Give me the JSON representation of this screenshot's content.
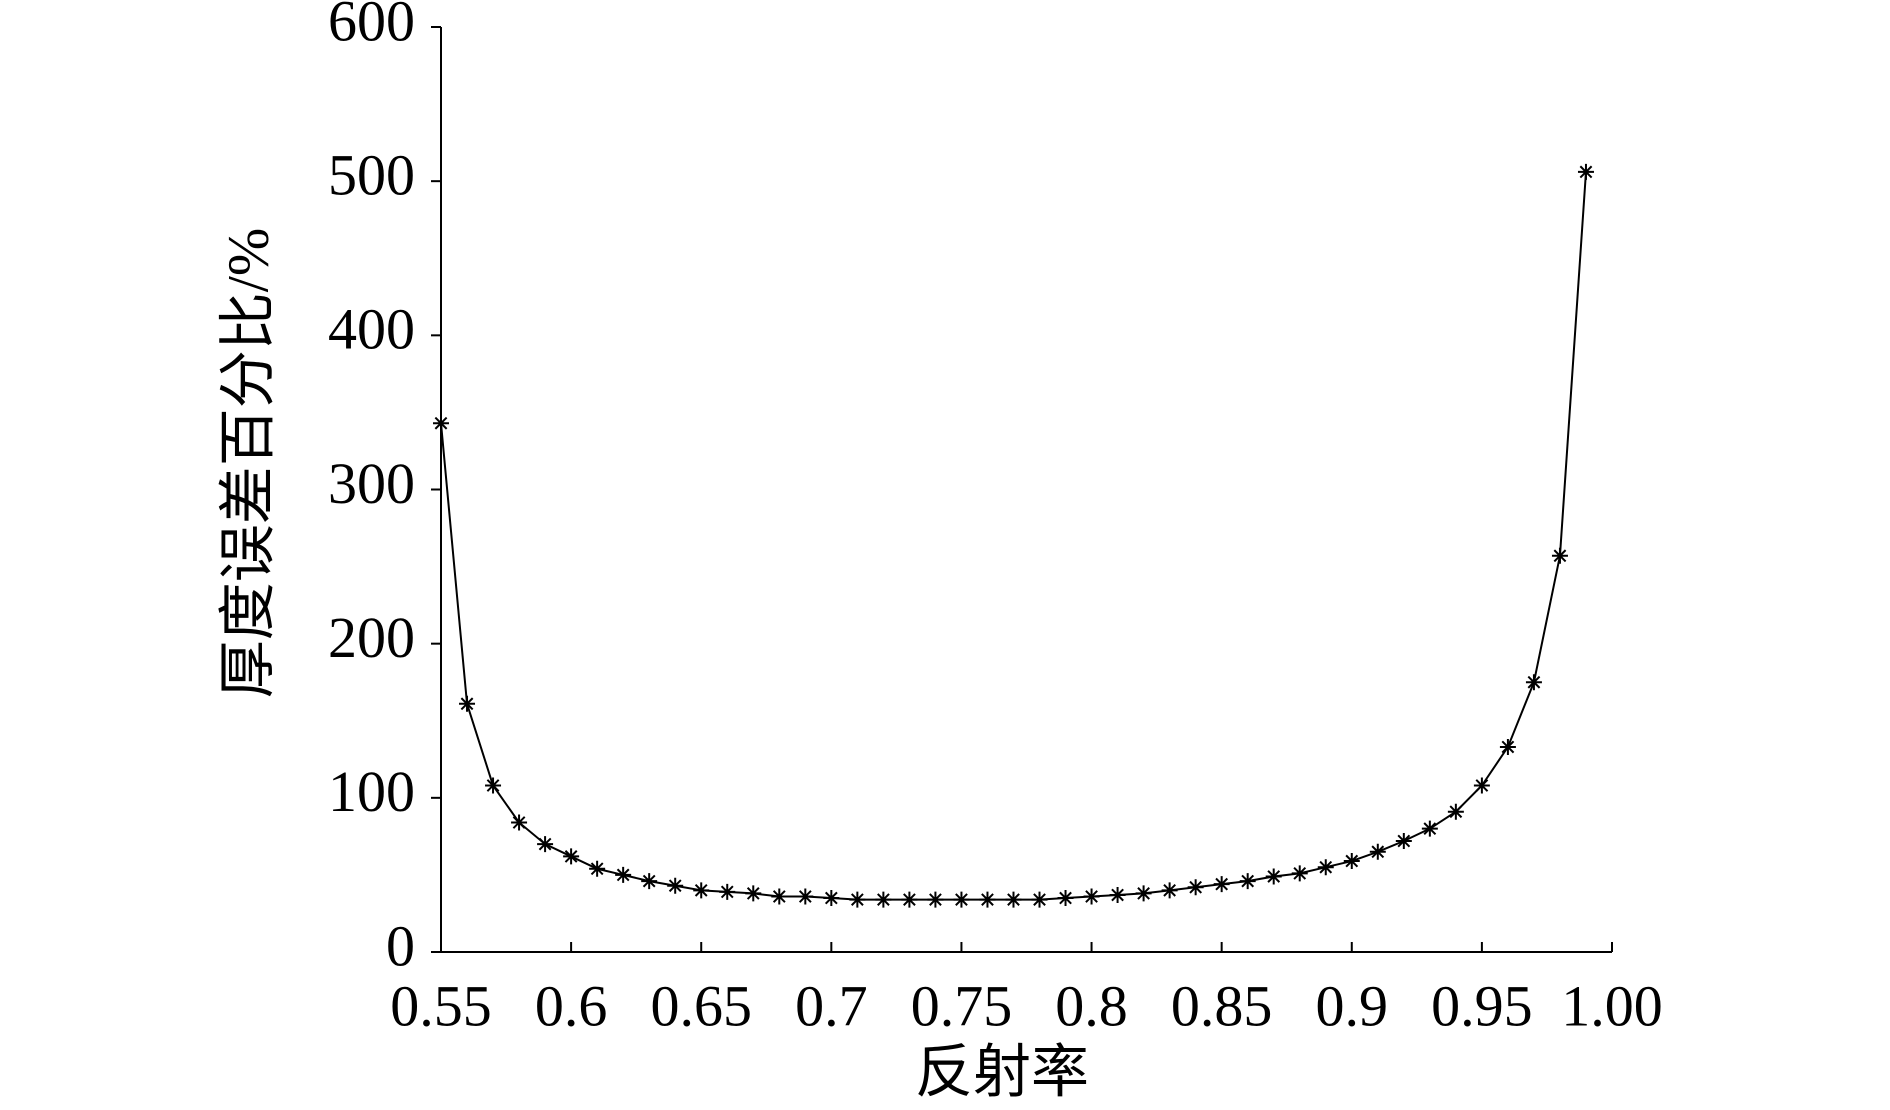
{
  "chart_data": {
    "type": "line",
    "xlabel": "反射率",
    "ylabel": "厚度误差百分比/%",
    "x": [
      0.55,
      0.56,
      0.57,
      0.58,
      0.59,
      0.6,
      0.61,
      0.62,
      0.63,
      0.64,
      0.65,
      0.66,
      0.67,
      0.68,
      0.69,
      0.7,
      0.71,
      0.72,
      0.73,
      0.74,
      0.75,
      0.76,
      0.77,
      0.78,
      0.79,
      0.8,
      0.81,
      0.82,
      0.83,
      0.84,
      0.85,
      0.86,
      0.87,
      0.88,
      0.89,
      0.9,
      0.91,
      0.92,
      0.93,
      0.94,
      0.95,
      0.96,
      0.97,
      0.98,
      0.99
    ],
    "series": [
      {
        "color": "#000000",
        "values": [
          343,
          161,
          108,
          84,
          70,
          62,
          54,
          50,
          46,
          43,
          40,
          39,
          38,
          36,
          36,
          35,
          34,
          34,
          34,
          34,
          34,
          34,
          34,
          34,
          35,
          36,
          37,
          38,
          40,
          42,
          44,
          46,
          49,
          51,
          55,
          59,
          65,
          72,
          80,
          91,
          108,
          133,
          175,
          257,
          506
        ]
      }
    ],
    "xlim": [
      0.55,
      1
    ],
    "xticks": [
      0.55,
      0.6,
      0.65,
      0.7,
      0.75,
      0.8,
      0.85,
      0.9,
      0.95,
      {
        "value": 1,
        "label": "1.00"
      }
    ],
    "ylim": [
      0,
      600
    ],
    "yticks": [
      0,
      100,
      200,
      300,
      400,
      500,
      600
    ],
    "grid": false,
    "marker": "asterisk"
  }
}
